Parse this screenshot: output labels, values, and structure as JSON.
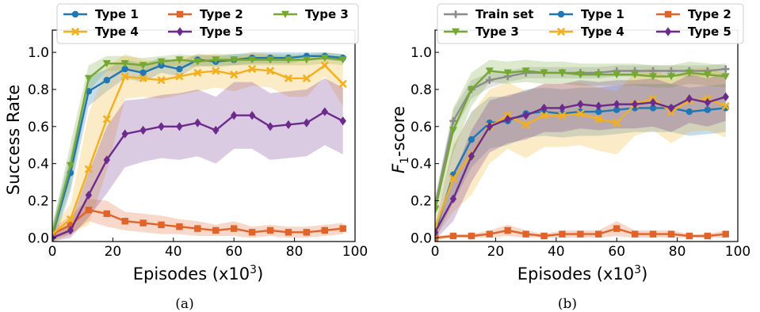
{
  "colors": {
    "train": "#8c8c8c",
    "type1": "#1f77b4",
    "type2": "#e0632a",
    "type3": "#74a832",
    "type4": "#f2b01e",
    "type5": "#6b2a8c"
  },
  "chart_data": [
    {
      "type": "line",
      "caption": "(a)",
      "xlabel": "Episodes (x10",
      "xlabel_sup": "3",
      "xlabel_close": ")",
      "ylabel": "Success Rate",
      "xlim": [
        0,
        100
      ],
      "ylim": [
        -0.02,
        1.12
      ],
      "xticks": [
        0,
        20,
        40,
        60,
        80,
        100
      ],
      "xtick_labels": [
        "0",
        "20",
        "40",
        "60",
        "80",
        "100"
      ],
      "yticks": [
        0.0,
        0.2,
        0.4,
        0.6,
        0.8,
        1.0
      ],
      "ytick_labels": [
        "0.0",
        "0.2",
        "0.4",
        "0.6",
        "0.8",
        "1.0"
      ],
      "legend": "top, 3 columns",
      "x": [
        0,
        6,
        12,
        18,
        24,
        30,
        36,
        42,
        48,
        54,
        60,
        66,
        72,
        78,
        84,
        90,
        96
      ],
      "series": [
        {
          "name": "Type 1",
          "color_key": "type1",
          "marker": "circle",
          "values": [
            0.01,
            0.35,
            0.79,
            0.85,
            0.91,
            0.89,
            0.93,
            0.91,
            0.96,
            0.95,
            0.96,
            0.97,
            0.97,
            0.97,
            0.98,
            0.98,
            0.97
          ],
          "band": [
            0.06,
            0.1,
            0.08,
            0.06,
            0.05,
            0.05,
            0.04,
            0.04,
            0.03,
            0.03,
            0.03,
            0.03,
            0.03,
            0.03,
            0.02,
            0.02,
            0.02
          ]
        },
        {
          "name": "Type 2",
          "color_key": "type2",
          "marker": "square",
          "values": [
            0.02,
            0.07,
            0.15,
            0.13,
            0.09,
            0.08,
            0.07,
            0.06,
            0.05,
            0.04,
            0.05,
            0.03,
            0.04,
            0.03,
            0.03,
            0.04,
            0.05
          ],
          "band": [
            0.03,
            0.05,
            0.06,
            0.07,
            0.05,
            0.05,
            0.05,
            0.04,
            0.04,
            0.03,
            0.04,
            0.03,
            0.03,
            0.03,
            0.03,
            0.03,
            0.03
          ]
        },
        {
          "name": "Type 3",
          "color_key": "type3",
          "marker": "triangle-down",
          "values": [
            0.02,
            0.39,
            0.86,
            0.94,
            0.94,
            0.93,
            0.95,
            0.96,
            0.95,
            0.96,
            0.96,
            0.96,
            0.96,
            0.96,
            0.96,
            0.97,
            0.96
          ],
          "band": [
            0.04,
            0.12,
            0.07,
            0.04,
            0.04,
            0.04,
            0.03,
            0.03,
            0.03,
            0.03,
            0.03,
            0.03,
            0.03,
            0.03,
            0.03,
            0.03,
            0.03
          ]
        },
        {
          "name": "Type 4",
          "color_key": "type4",
          "marker": "x",
          "values": [
            0.02,
            0.1,
            0.37,
            0.64,
            0.87,
            0.86,
            0.85,
            0.87,
            0.89,
            0.9,
            0.88,
            0.91,
            0.9,
            0.86,
            0.86,
            0.93,
            0.83
          ],
          "band": [
            0.04,
            0.08,
            0.3,
            0.28,
            0.12,
            0.1,
            0.1,
            0.1,
            0.1,
            0.09,
            0.09,
            0.09,
            0.09,
            0.1,
            0.1,
            0.06,
            0.12
          ]
        },
        {
          "name": "Type 5",
          "color_key": "type5",
          "marker": "diamond",
          "values": [
            0.0,
            0.04,
            0.23,
            0.42,
            0.56,
            0.58,
            0.6,
            0.6,
            0.62,
            0.58,
            0.66,
            0.66,
            0.6,
            0.61,
            0.62,
            0.68,
            0.63
          ],
          "band": [
            0.02,
            0.04,
            0.12,
            0.18,
            0.18,
            0.17,
            0.17,
            0.18,
            0.18,
            0.18,
            0.18,
            0.18,
            0.18,
            0.18,
            0.18,
            0.18,
            0.18
          ]
        }
      ]
    },
    {
      "type": "line",
      "caption": "(b)",
      "xlabel": "Episodes (x10",
      "xlabel_sup": "3",
      "xlabel_close": ")",
      "ylabel": "F",
      "ylabel_sub": "1",
      "ylabel_rest": "-score",
      "xlim": [
        0,
        100
      ],
      "ylim": [
        -0.02,
        1.12
      ],
      "xticks": [
        0,
        20,
        40,
        60,
        80,
        100
      ],
      "xtick_labels": [
        "0",
        "20",
        "40",
        "60",
        "80",
        "100"
      ],
      "yticks": [
        0.0,
        0.2,
        0.4,
        0.6,
        0.8,
        1.0
      ],
      "ytick_labels": [
        "0.0",
        "0.2",
        "0.4",
        "0.6",
        "0.8",
        "1.0"
      ],
      "legend": "top, 3 columns",
      "x": [
        0,
        6,
        12,
        18,
        24,
        30,
        36,
        42,
        48,
        54,
        60,
        66,
        72,
        78,
        84,
        90,
        96
      ],
      "series": [
        {
          "name": "Train set",
          "color_key": "train",
          "marker": "plus",
          "values": [
            0.17,
            0.63,
            0.8,
            0.85,
            0.87,
            0.89,
            0.89,
            0.89,
            0.89,
            0.89,
            0.9,
            0.9,
            0.9,
            0.9,
            0.9,
            0.9,
            0.91
          ],
          "band": [
            0.05,
            0.06,
            0.05,
            0.04,
            0.03,
            0.03,
            0.03,
            0.03,
            0.03,
            0.03,
            0.03,
            0.03,
            0.03,
            0.03,
            0.03,
            0.03,
            0.03
          ]
        },
        {
          "name": "Type 1",
          "color_key": "type1",
          "marker": "circle",
          "values": [
            0.03,
            0.34,
            0.53,
            0.62,
            0.63,
            0.67,
            0.68,
            0.67,
            0.68,
            0.68,
            0.69,
            0.7,
            0.7,
            0.7,
            0.68,
            0.69,
            0.7
          ],
          "band": [
            0.04,
            0.15,
            0.15,
            0.14,
            0.13,
            0.13,
            0.13,
            0.13,
            0.13,
            0.13,
            0.13,
            0.13,
            0.13,
            0.13,
            0.13,
            0.13,
            0.13
          ]
        },
        {
          "name": "Type 2",
          "color_key": "type2",
          "marker": "square",
          "values": [
            0.0,
            0.01,
            0.01,
            0.02,
            0.04,
            0.02,
            0.01,
            0.02,
            0.02,
            0.02,
            0.05,
            0.02,
            0.02,
            0.02,
            0.01,
            0.01,
            0.02
          ],
          "band": [
            0.01,
            0.01,
            0.01,
            0.02,
            0.03,
            0.02,
            0.01,
            0.02,
            0.02,
            0.02,
            0.04,
            0.02,
            0.02,
            0.02,
            0.01,
            0.01,
            0.02
          ]
        },
        {
          "name": "Type 3",
          "color_key": "type3",
          "marker": "triangle-down",
          "values": [
            0.15,
            0.58,
            0.8,
            0.9,
            0.89,
            0.9,
            0.89,
            0.89,
            0.88,
            0.88,
            0.88,
            0.88,
            0.87,
            0.87,
            0.89,
            0.88,
            0.87
          ],
          "band": [
            0.05,
            0.12,
            0.09,
            0.06,
            0.06,
            0.06,
            0.06,
            0.06,
            0.06,
            0.06,
            0.06,
            0.06,
            0.06,
            0.06,
            0.06,
            0.06,
            0.06
          ]
        },
        {
          "name": "Type 4",
          "color_key": "type4",
          "marker": "x",
          "values": [
            0.05,
            0.32,
            0.45,
            0.6,
            0.66,
            0.61,
            0.66,
            0.66,
            0.67,
            0.64,
            0.62,
            0.72,
            0.75,
            0.68,
            0.74,
            0.75,
            0.71
          ],
          "band": [
            0.05,
            0.18,
            0.22,
            0.2,
            0.18,
            0.18,
            0.17,
            0.17,
            0.17,
            0.17,
            0.17,
            0.17,
            0.17,
            0.17,
            0.17,
            0.17,
            0.17
          ]
        },
        {
          "name": "Type 5",
          "color_key": "type5",
          "marker": "diamond",
          "values": [
            0.03,
            0.21,
            0.44,
            0.6,
            0.64,
            0.66,
            0.7,
            0.7,
            0.72,
            0.71,
            0.72,
            0.72,
            0.73,
            0.7,
            0.75,
            0.73,
            0.76
          ],
          "band": [
            0.04,
            0.12,
            0.14,
            0.14,
            0.13,
            0.13,
            0.13,
            0.13,
            0.13,
            0.13,
            0.13,
            0.13,
            0.13,
            0.13,
            0.13,
            0.13,
            0.13
          ]
        }
      ]
    }
  ]
}
